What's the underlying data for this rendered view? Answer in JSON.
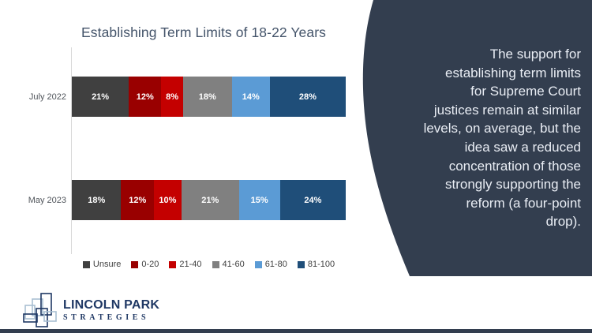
{
  "chart_data": {
    "type": "bar",
    "stacked": true,
    "orientation": "horizontal",
    "title": "Establishing Term Limits of 18-22 Years",
    "categories": [
      "July 2022",
      "May 2023"
    ],
    "series": [
      {
        "name": "Unsure",
        "color": "#404040",
        "values": [
          21,
          18
        ]
      },
      {
        "name": "0-20",
        "color": "#990000",
        "values": [
          12,
          12
        ]
      },
      {
        "name": "21-40",
        "color": "#c40000",
        "values": [
          8,
          10
        ]
      },
      {
        "name": "41-60",
        "color": "#808080",
        "values": [
          18,
          21
        ]
      },
      {
        "name": "61-80",
        "color": "#5b9bd5",
        "values": [
          14,
          15
        ]
      },
      {
        "name": "81-100",
        "color": "#1f4e79",
        "values": [
          28,
          24
        ]
      }
    ],
    "value_suffix": "%",
    "xlim": [
      0,
      100
    ],
    "legend_position": "bottom",
    "grid": false
  },
  "sidebar": {
    "background_color": "#333e4f",
    "text": "The support for\nestablishing term limits\nfor Supreme Court\njustices remain at similar\nlevels, on average, but the\nidea saw a reduced\nconcentration of those\nstrongly supporting the\nreform (a four-point\ndrop)."
  },
  "logo": {
    "name": "LINCOLN PARK",
    "sub": "STRATEGIES",
    "navy": "#1f3864",
    "light_blue": "#a9bfd2"
  }
}
